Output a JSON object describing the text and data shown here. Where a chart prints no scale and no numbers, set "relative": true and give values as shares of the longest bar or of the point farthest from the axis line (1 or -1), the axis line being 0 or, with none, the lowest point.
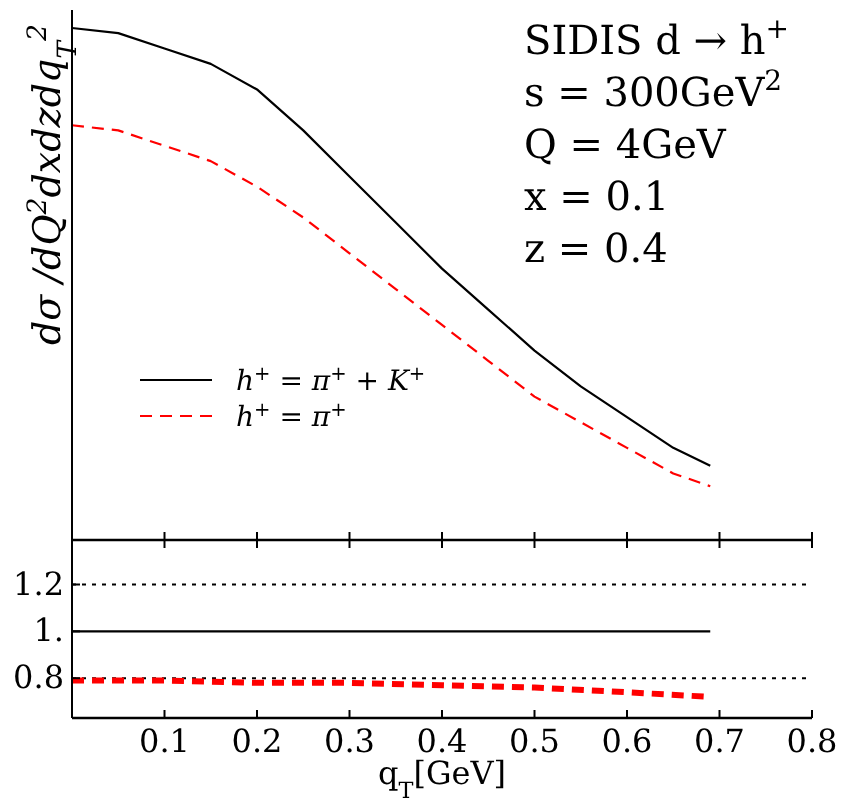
{
  "chart_data": [
    {
      "type": "line",
      "relative": true,
      "ylabel": "dσ /dQ$^{2}$dxdzdq$_{T}$$^{2}$",
      "xlim": [
        0,
        0.8
      ],
      "xticks": [
        0.1,
        0.2,
        0.3,
        0.4,
        0.5,
        0.6,
        0.7,
        0.8
      ],
      "tick_labels": false,
      "legend": "left",
      "annotations": [
        "SIDIS d → h$^{+}$",
        "s = 300GeV$^{2}$",
        "Q = 4GeV",
        "x = 0.1",
        "z = 0.4"
      ],
      "x": [
        0,
        0.05,
        0.1,
        0.15,
        0.2,
        0.25,
        0.3,
        0.35,
        0.4,
        0.45,
        0.5,
        0.55,
        0.6,
        0.65,
        0.69
      ],
      "series": [
        {
          "name": "h$^{+}$ = π$^{+}$ + K$^{+}$",
          "color": "#000000",
          "line_style": "solid",
          "values": [
            1,
            0.99,
            0.96,
            0.93,
            0.88,
            0.8,
            0.71,
            0.62,
            0.53,
            0.45,
            0.37,
            0.3,
            0.24,
            0.18,
            0.145
          ]
        },
        {
          "name": "h$^{+}$ = π$^{+}$",
          "color": "#ff0000",
          "line_style": "dashed",
          "values": [
            0.81,
            0.8,
            0.77,
            0.74,
            0.69,
            0.63,
            0.56,
            0.49,
            0.42,
            0.35,
            0.28,
            0.23,
            0.18,
            0.13,
            0.105
          ]
        }
      ]
    },
    {
      "type": "line",
      "xlabel": "q$_{T}$[GeV]",
      "xlim": [
        0,
        0.8
      ],
      "ylim": [
        0.63,
        1.39
      ],
      "xticks": [
        0.1,
        0.2,
        0.3,
        0.4,
        0.5,
        0.6,
        0.7,
        0.8
      ],
      "yticks": [
        0.8,
        {
          "value": 1,
          "label": "1."
        },
        1.2
      ],
      "ref_lines": [
        {
          "axis": "y",
          "value": 1.2,
          "color": "#000000",
          "line_style": "dotted"
        },
        {
          "axis": "y",
          "value": 0.8,
          "color": "#000000",
          "line_style": "dotted"
        }
      ],
      "x": [
        0,
        0.1,
        0.2,
        0.3,
        0.4,
        0.5,
        0.6,
        0.69
      ],
      "series": [
        {
          "color": "#000000",
          "line_style": "solid",
          "values": [
            1,
            1,
            1,
            1,
            1,
            1,
            1,
            1
          ]
        },
        {
          "color": "#ff0000",
          "line_style": "dashed",
          "values": [
            0.79,
            0.79,
            0.78,
            0.78,
            0.77,
            0.76,
            0.74,
            0.72
          ]
        }
      ]
    }
  ]
}
